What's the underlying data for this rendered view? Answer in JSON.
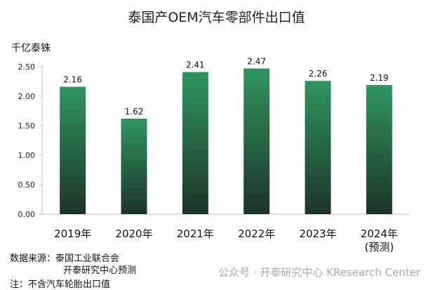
{
  "chart_data": {
    "type": "bar",
    "title": "泰国产OEM汽车零部件出口值",
    "ylabel": "千亿泰铢",
    "categories": [
      "2019年",
      "2020年",
      "2021年",
      "2022年",
      "2023年",
      "2024年\n(预测)"
    ],
    "values": [
      2.16,
      1.62,
      2.41,
      2.47,
      2.26,
      2.19
    ],
    "data_labels": [
      "2.16",
      "1.62",
      "2.41",
      "2.47",
      "2.26",
      "2.19"
    ],
    "yticks": [
      "0.00",
      "0.50",
      "1.00",
      "1.50",
      "2.00",
      "2.50"
    ],
    "ylim": [
      0,
      2.5
    ],
    "grid": false,
    "bar_gradient": [
      "#2f9660",
      "#1c3526"
    ]
  },
  "source_line1": "数据来源：泰国工业联合会",
  "source_line2": "开泰研究中心预测",
  "note": "注：不含汽车轮胎出口值",
  "watermark": "公众号 · 开泰研究中心 KResearch Center"
}
